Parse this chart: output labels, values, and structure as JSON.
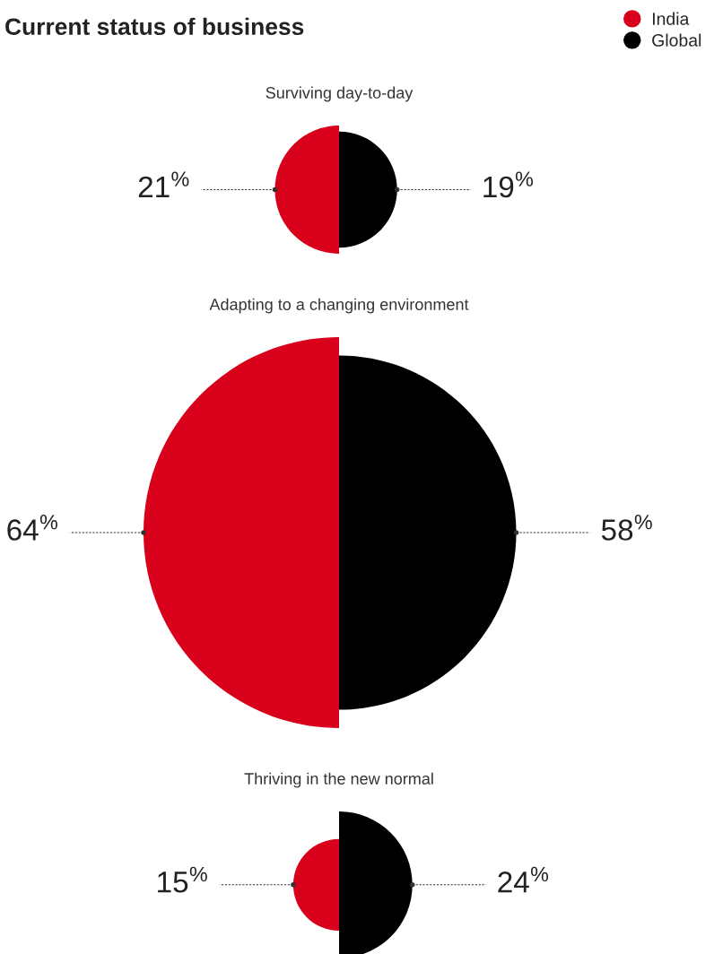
{
  "chart_data": {
    "type": "other",
    "title": "Current status of business",
    "categories": [
      "Surviving day-to-day",
      "Adapting to a changing environment",
      "Thriving in the new normal"
    ],
    "series": [
      {
        "name": "India",
        "color": "#d9001b",
        "values": [
          21,
          64,
          15
        ],
        "value_labels": [
          "21$^{%}$",
          "64$^{%}$",
          "15$^{%}$"
        ]
      },
      {
        "name": "Global",
        "color": "#000000",
        "values": [
          19,
          58,
          24
        ],
        "value_labels": [
          "19$^{%}$",
          "58$^{%}$",
          "24$^{%}$"
        ]
      }
    ],
    "legend": "top right"
  }
}
